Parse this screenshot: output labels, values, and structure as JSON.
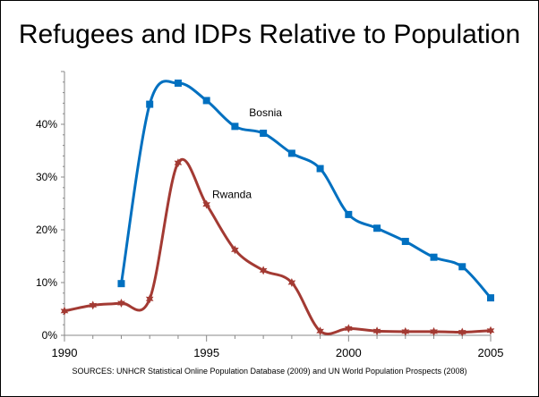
{
  "chart_data": {
    "type": "line",
    "title": "Refugees and IDPs Relative to Population",
    "source": "SOURCES: UNHCR Statistical Online Population Database (2009) and UN World Population Prospects (2008)",
    "xlim": [
      1990,
      2005
    ],
    "ylim": [
      0,
      50
    ],
    "x_ticks": [
      "1990",
      "1995",
      "2000",
      "2005"
    ],
    "y_ticks": [
      "0%",
      "10%",
      "20%",
      "30%",
      "40%"
    ],
    "y_tick_values": [
      0,
      10,
      20,
      30,
      40
    ],
    "x_tick_values": [
      1990,
      1995,
      2000,
      2005
    ],
    "grid": false,
    "series": [
      {
        "name": "Bosnia",
        "color": "#0070C0",
        "marker": "square",
        "x": [
          1992,
          1993,
          1994,
          1995,
          1996,
          1997,
          1998,
          1999,
          2000,
          2001,
          2002,
          2003,
          2004,
          2005
        ],
        "values": [
          9.8,
          43.8,
          47.8,
          44.5,
          39.6,
          38.3,
          34.5,
          31.6,
          22.9,
          20.3,
          17.8,
          14.8,
          13.0,
          7.1
        ]
      },
      {
        "name": "Rwanda",
        "color": "#A33A33",
        "marker": "star",
        "x": [
          1990,
          1991,
          1992,
          1993,
          1994,
          1995,
          1996,
          1997,
          1998,
          1999,
          2000,
          2001,
          2002,
          2003,
          2004,
          2005
        ],
        "values": [
          4.6,
          5.7,
          6.1,
          6.9,
          32.7,
          24.8,
          16.2,
          12.3,
          10.0,
          0.8,
          1.3,
          0.8,
          0.7,
          0.7,
          0.6,
          0.9
        ]
      }
    ],
    "annotations": [
      {
        "text": "Bosnia",
        "series": "Bosnia",
        "x": 1996.5,
        "y": 41.5
      },
      {
        "text": "Rwanda",
        "series": "Rwanda",
        "x": 1995.2,
        "y": 26.0
      }
    ]
  }
}
